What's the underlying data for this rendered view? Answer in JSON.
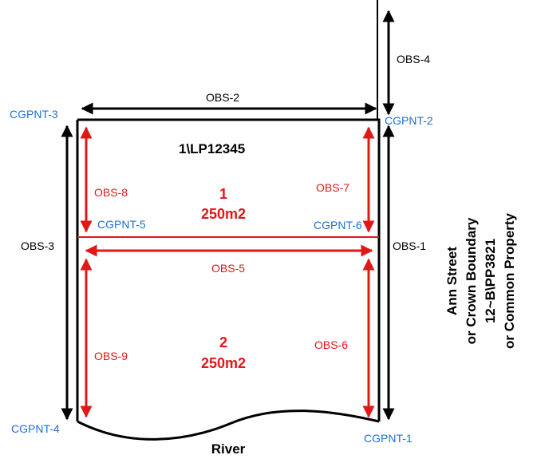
{
  "plan_ref": "1\\LP12345",
  "points": {
    "cgpnt1": "CGPNT-1",
    "cgpnt2": "CGPNT-2",
    "cgpnt3": "CGPNT-3",
    "cgpnt4": "CGPNT-4",
    "cgpnt5": "CGPNT-5",
    "cgpnt6": "CGPNT-6"
  },
  "observations": {
    "obs1": "OBS-1",
    "obs2": "OBS-2",
    "obs3": "OBS-3",
    "obs4": "OBS-4",
    "obs5": "OBS-5",
    "obs6": "OBS-6",
    "obs7": "OBS-7",
    "obs8": "OBS-8",
    "obs9": "OBS-9"
  },
  "lots": [
    {
      "number": "1",
      "area": "250m2"
    },
    {
      "number": "2",
      "area": "250m2"
    }
  ],
  "river": "River",
  "side_note": [
    "Ann Street",
    "or Crown Boundary",
    "12~B\\PP3821",
    "or Common Property"
  ],
  "colors": {
    "parcel": "#000000",
    "internal": "#e01818",
    "points": "#1e6fd6"
  }
}
